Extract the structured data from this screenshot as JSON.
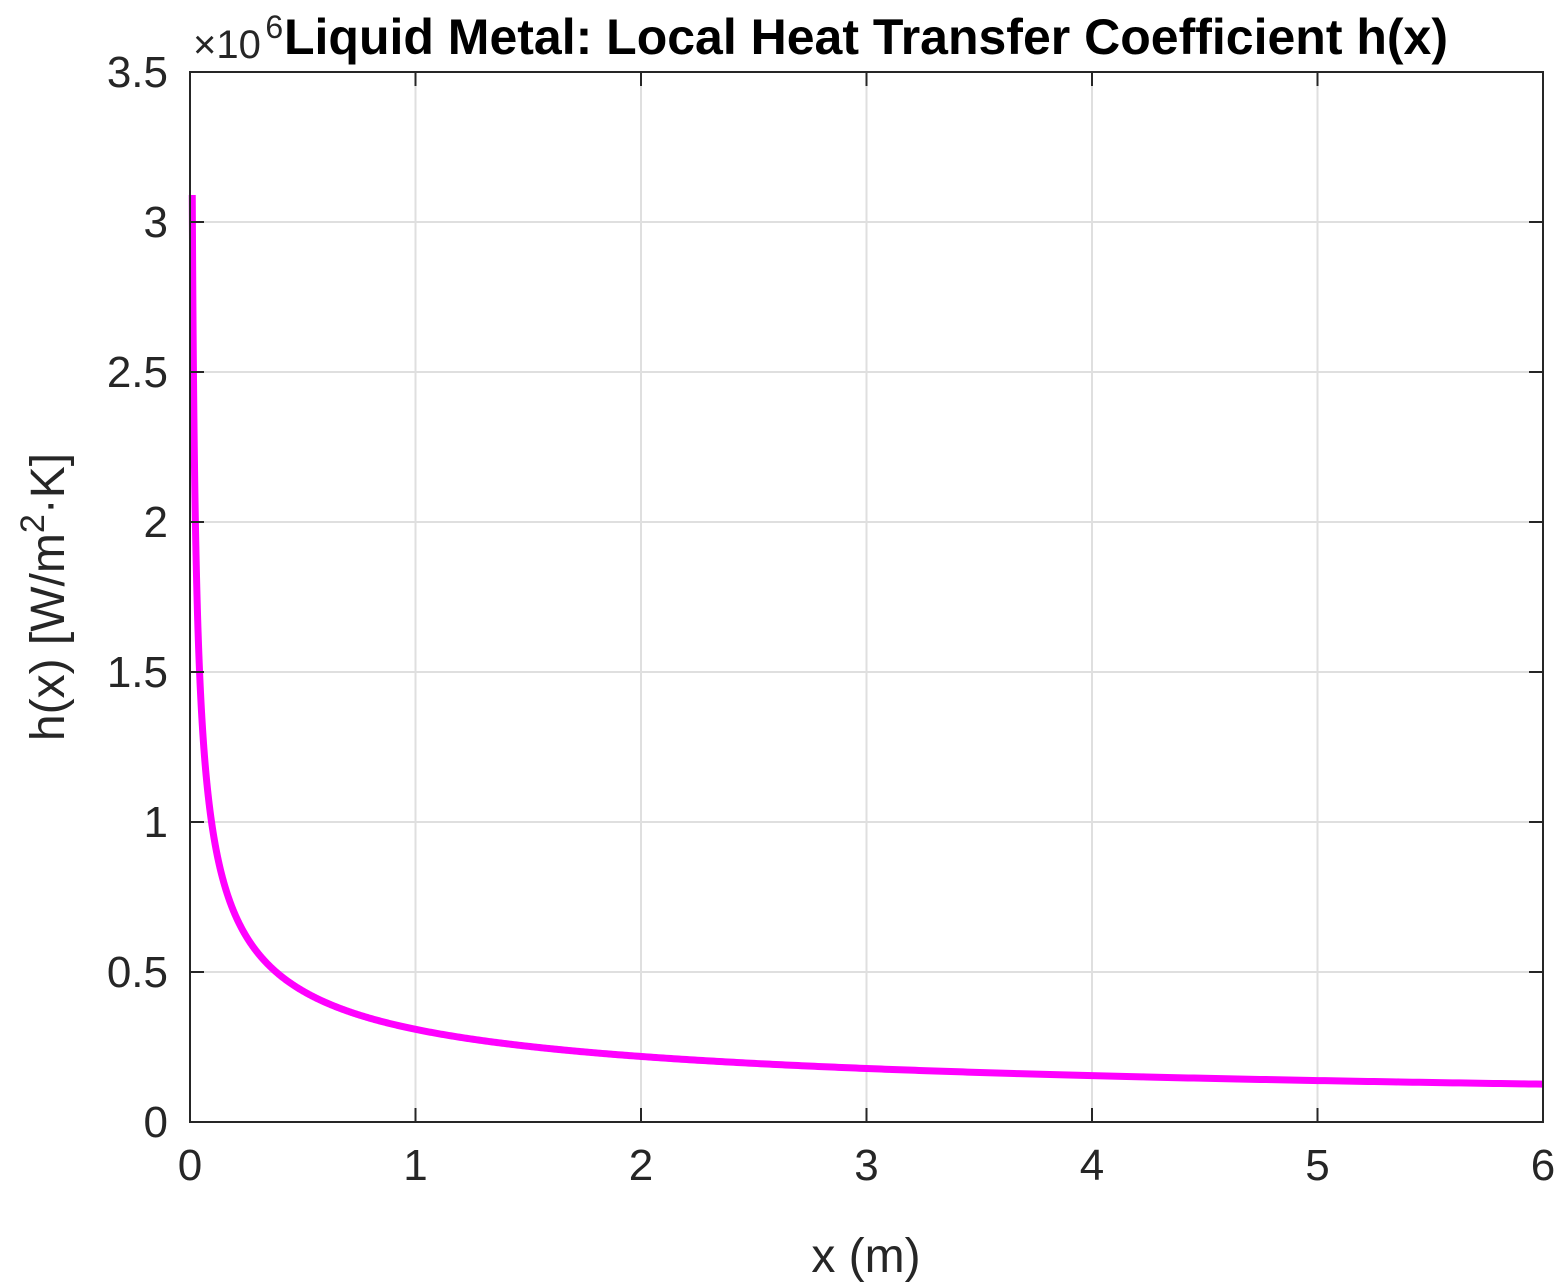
{
  "chart_data": {
    "type": "line",
    "title": "Liquid Metal: Local Heat Transfer Coefficient h(x)",
    "xlabel": "x (m)",
    "ylabel_main": "h(x) [W/m",
    "ylabel_sup": "2",
    "ylabel_tail": "·K]",
    "y_exponent_base": "×10",
    "y_exponent_power": "6",
    "xlim": [
      0,
      6
    ],
    "ylim": [
      0,
      3500000
    ],
    "xticks": [
      0,
      1,
      2,
      3,
      4,
      5,
      6
    ],
    "xtick_labels": [
      "0",
      "1",
      "2",
      "3",
      "4",
      "5",
      "6"
    ],
    "yticks": [
      0,
      500000,
      1000000,
      1500000,
      2000000,
      2500000,
      3000000,
      3500000
    ],
    "ytick_labels": [
      "0",
      "0.5",
      "1",
      "1.5",
      "2",
      "2.5",
      "3",
      "3.5"
    ],
    "grid": true,
    "series": [
      {
        "name": "h(x)",
        "color": "#ff00ff",
        "model": "h = C / sqrt(x)",
        "C": 309000,
        "x_start": 0.01,
        "x_end": 6,
        "sample_points": [
          [
            0.01,
            3090000
          ],
          [
            0.05,
            1382000
          ],
          [
            0.1,
            977000
          ],
          [
            0.25,
            618000
          ],
          [
            0.5,
            437000
          ],
          [
            1,
            309000
          ],
          [
            2,
            218500
          ],
          [
            3,
            178400
          ],
          [
            4,
            154500
          ],
          [
            5,
            138200
          ],
          [
            6,
            126100
          ]
        ]
      }
    ]
  },
  "colors": {
    "axis": "#262626",
    "grid": "#dfdfdf",
    "line": "#ff00ff",
    "background": "#ffffff"
  }
}
